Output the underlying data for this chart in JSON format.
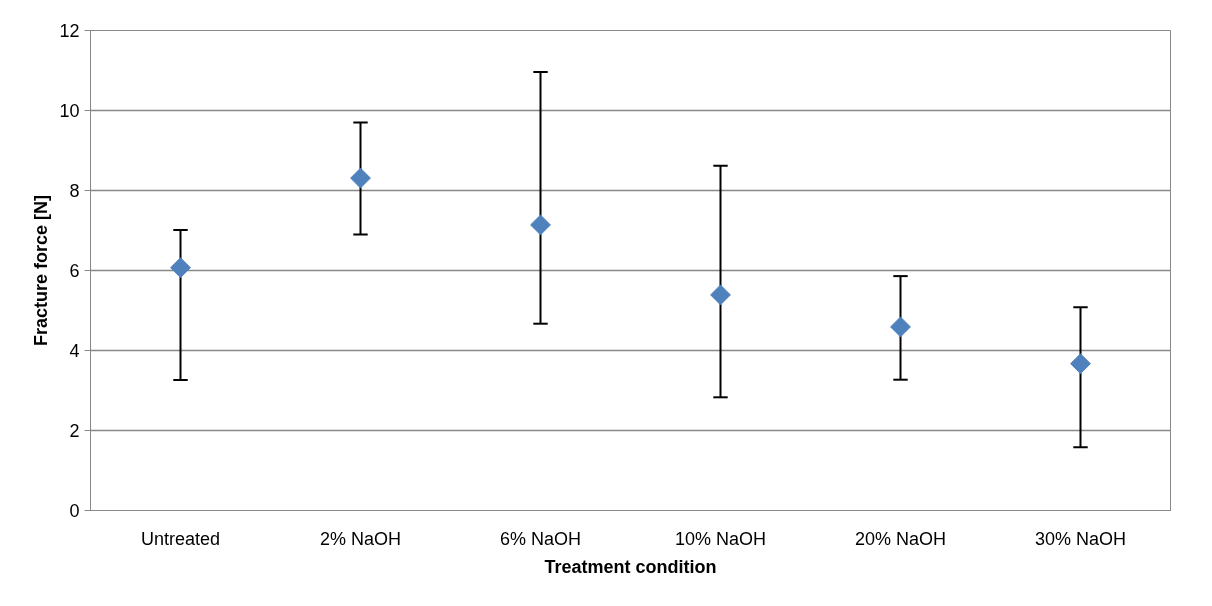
{
  "chart_data": {
    "type": "scatter",
    "xlabel": "Treatment condition",
    "ylabel": "Fracture force [N]",
    "categories": [
      "Untreated",
      "2% NaOH",
      "6% NaOH",
      "10% NaOH",
      "20% NaOH",
      "30% NaOH"
    ],
    "series": [
      {
        "color": "#4f81bd",
        "values": [
          6.07,
          8.31,
          7.14,
          5.39,
          4.59,
          3.67
        ],
        "errors": [
          [
            3.26,
            7.01
          ],
          [
            6.9,
            9.7
          ],
          [
            4.67,
            10.96
          ],
          [
            2.83,
            8.62
          ],
          [
            3.27,
            5.86
          ],
          [
            1.58,
            5.08
          ]
        ]
      }
    ],
    "ylim": [
      0,
      12
    ],
    "yticks": [
      0,
      2,
      4,
      6,
      8,
      10,
      12
    ],
    "grid": "y",
    "marker": "diamond"
  }
}
